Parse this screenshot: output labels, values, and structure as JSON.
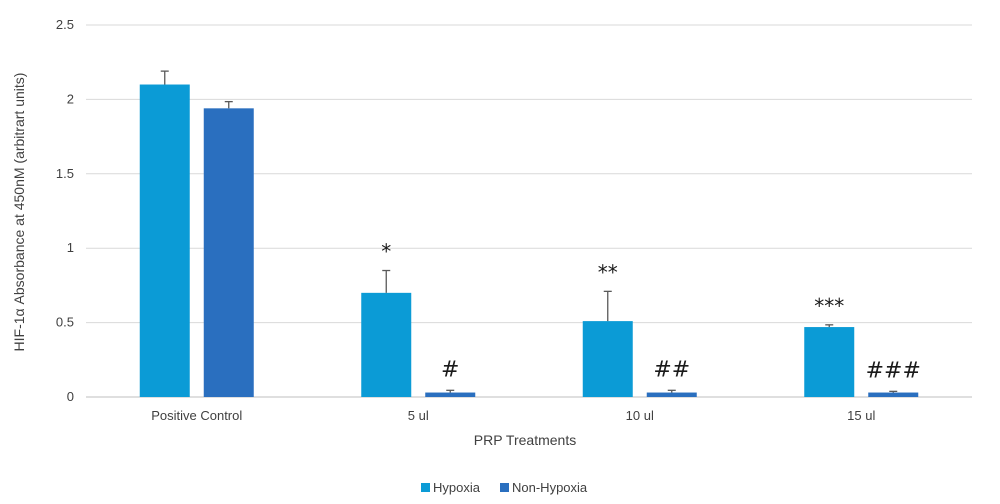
{
  "chart_data": {
    "type": "bar",
    "title": "",
    "xlabel": "PRP Treatments",
    "ylabel": "HIF-1α Absorbance at 450nM (arbitrart units)",
    "ylim": [
      0,
      2.5
    ],
    "yticks": [
      "0",
      "0.5",
      "1",
      "1.5",
      "2",
      "2.5"
    ],
    "ytick_values": [
      0,
      0.5,
      1,
      1.5,
      2,
      2.5
    ],
    "grid": true,
    "legend_position": "bottom",
    "categories": [
      "Positive Control",
      "5 ul",
      "10 ul",
      "15 ul"
    ],
    "series": [
      {
        "name": "Hypoxia",
        "color": "#0b9bd6",
        "values": [
          2.1,
          0.7,
          0.51,
          0.47
        ],
        "errors": [
          0.09,
          0.15,
          0.2,
          0.015
        ],
        "annotations": [
          "",
          "*",
          "**",
          "***"
        ]
      },
      {
        "name": "Non-Hypoxia",
        "color": "#2a6fbf",
        "values": [
          1.94,
          0.03,
          0.03,
          0.03
        ],
        "errors": [
          0.045,
          0.015,
          0.015,
          0.008
        ],
        "annotations": [
          "",
          "#",
          "##",
          "###"
        ]
      }
    ]
  }
}
